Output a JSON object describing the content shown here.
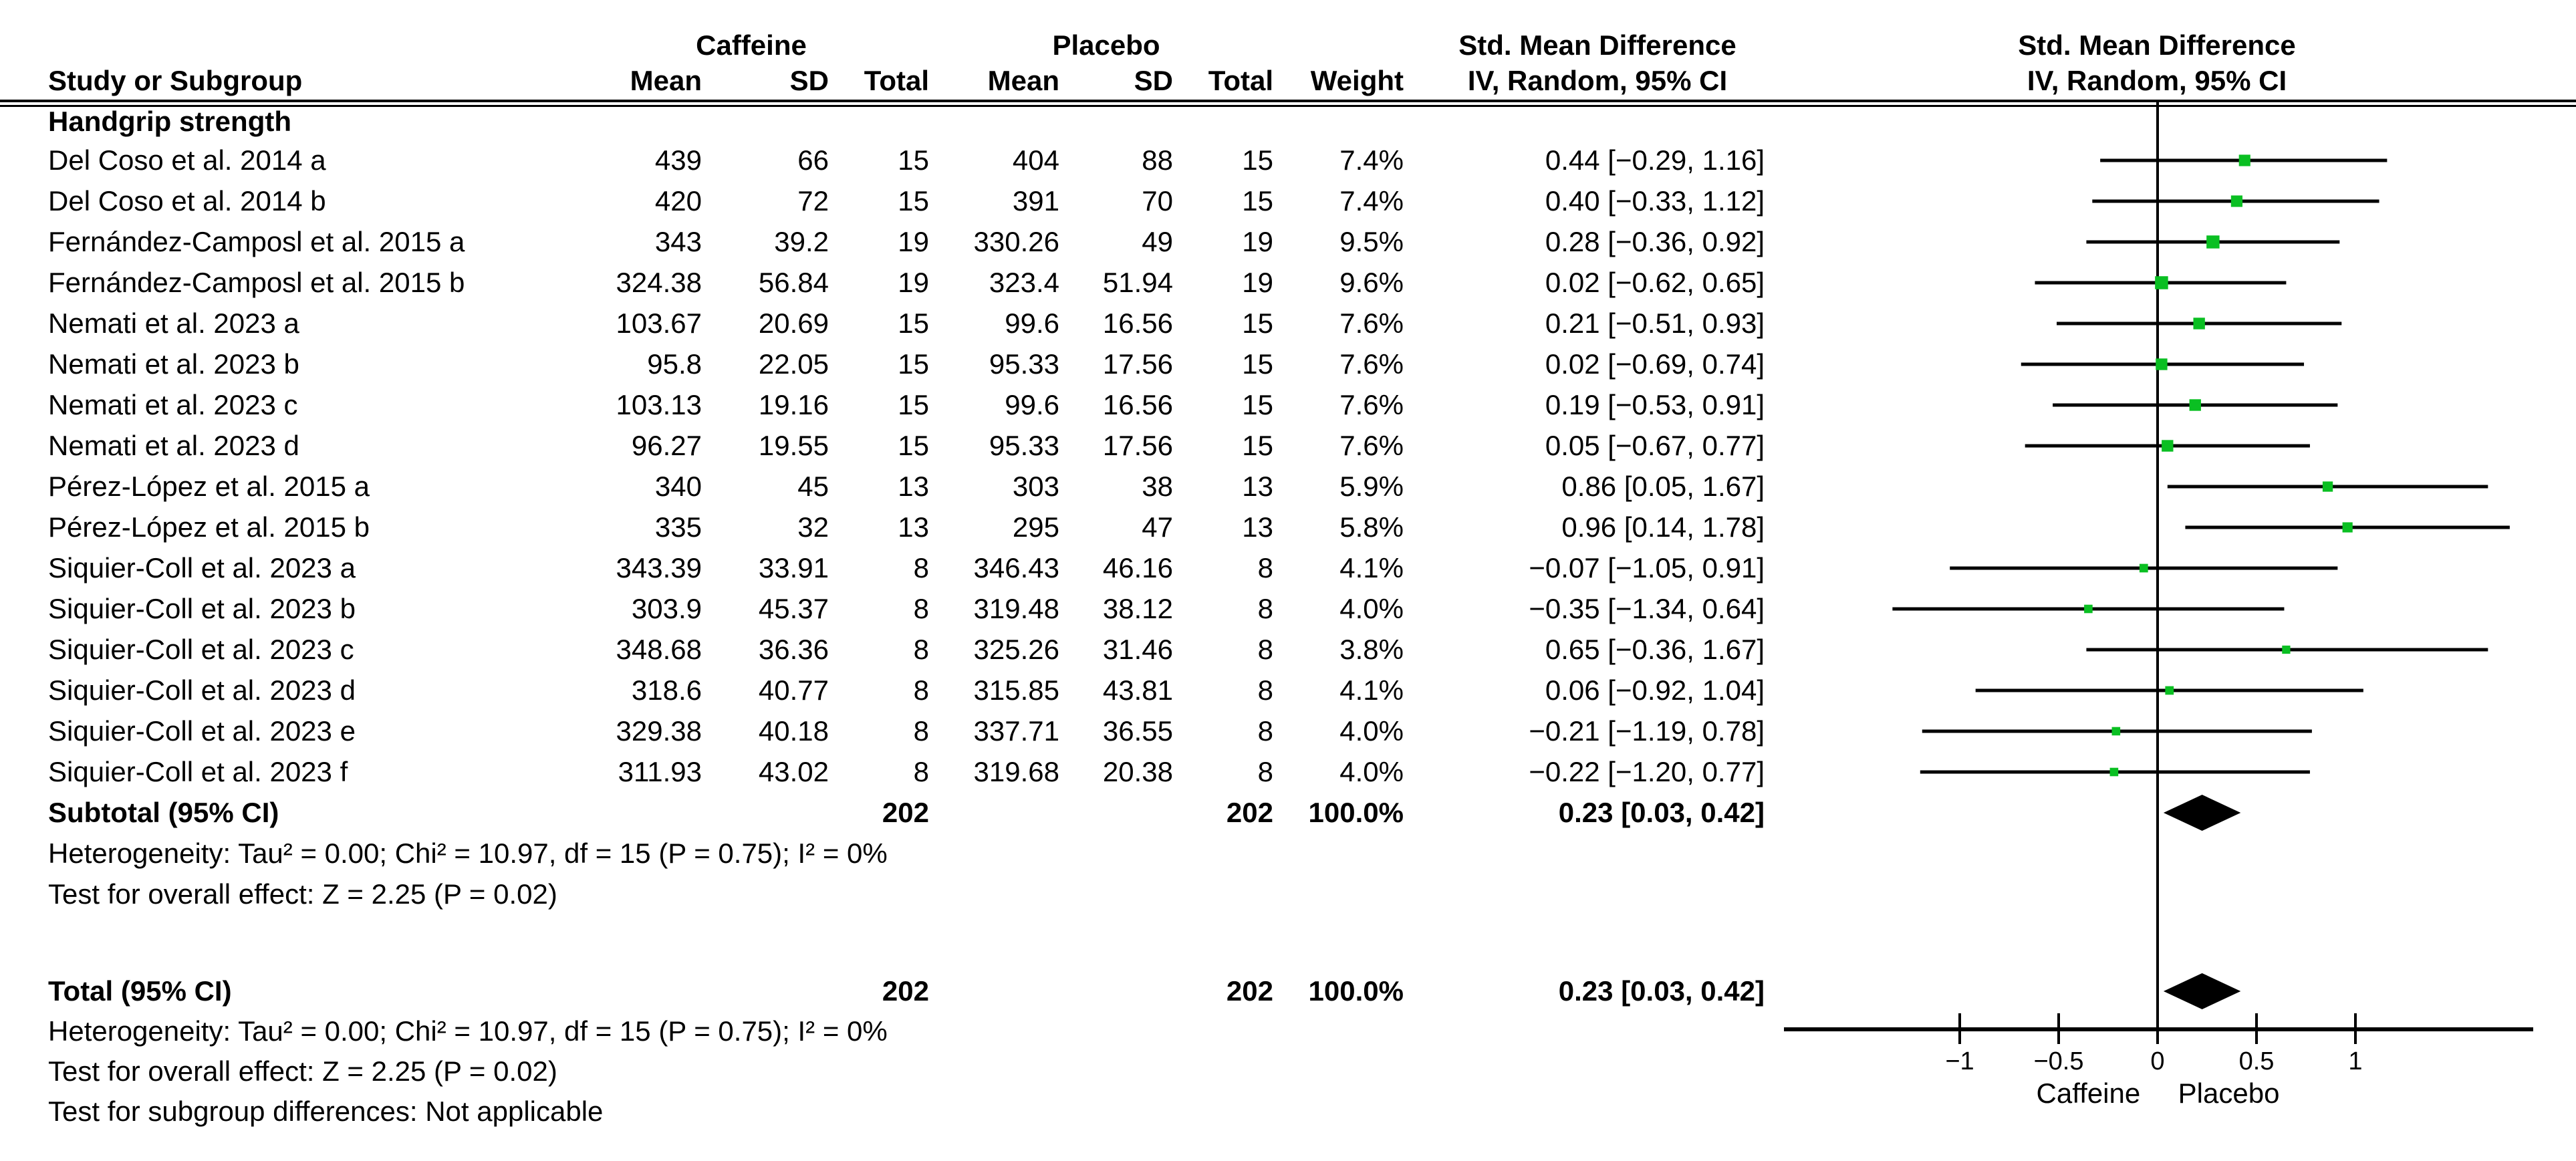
{
  "header": {
    "study_col": "Study or Subgroup",
    "group1": "Caffeine",
    "group2": "Placebo",
    "mean": "Mean",
    "sd": "SD",
    "total": "Total",
    "weight": "Weight",
    "effect_col": "Std. Mean Difference",
    "method_col": "IV, Random, 95% CI"
  },
  "subgroup_label": "Handgrip strength",
  "footer": {
    "subtotal_label": "Subtotal (95% CI)",
    "total_label": "Total (95% CI)",
    "heterogeneity": "Heterogeneity: Tau² = 0.00; Chi² = 10.97, df = 15 (P = 0.75); I² = 0%",
    "overall_effect": "Test for overall effect: Z = 2.25 (P = 0.02)",
    "subgroup_diff": "Test for subgroup differences: Not applicable"
  },
  "colors": {
    "square": "#0abf22",
    "diamond": "#000000",
    "line": "#000000"
  },
  "chart_data": {
    "type": "forest",
    "effect_measure": "Std. Mean Difference",
    "model": "IV, Random, 95% CI",
    "groups": [
      "Caffeine",
      "Placebo"
    ],
    "subgroup": "Handgrip strength",
    "studies": [
      {
        "study": "Del Coso et al. 2014 a",
        "c_mean": "439",
        "c_sd": "66",
        "c_n": "15",
        "p_mean": "404",
        "p_sd": "88",
        "p_n": "15",
        "weight": "7.4%",
        "ci_text": "0.44 [−0.29, 1.16]",
        "smd": 0.44,
        "lo": -0.29,
        "hi": 1.16,
        "weight_val": 7.4
      },
      {
        "study": "Del Coso et al. 2014 b",
        "c_mean": "420",
        "c_sd": "72",
        "c_n": "15",
        "p_mean": "391",
        "p_sd": "70",
        "p_n": "15",
        "weight": "7.4%",
        "ci_text": "0.40 [−0.33, 1.12]",
        "smd": 0.4,
        "lo": -0.33,
        "hi": 1.12,
        "weight_val": 7.4
      },
      {
        "study": "Fernández-Camposl et al. 2015 a",
        "c_mean": "343",
        "c_sd": "39.2",
        "c_n": "19",
        "p_mean": "330.26",
        "p_sd": "49",
        "p_n": "19",
        "weight": "9.5%",
        "ci_text": "0.28 [−0.36, 0.92]",
        "smd": 0.28,
        "lo": -0.36,
        "hi": 0.92,
        "weight_val": 9.5
      },
      {
        "study": "Fernández-Camposl et al. 2015 b",
        "c_mean": "324.38",
        "c_sd": "56.84",
        "c_n": "19",
        "p_mean": "323.4",
        "p_sd": "51.94",
        "p_n": "19",
        "weight": "9.6%",
        "ci_text": "0.02 [−0.62, 0.65]",
        "smd": 0.02,
        "lo": -0.62,
        "hi": 0.65,
        "weight_val": 9.6
      },
      {
        "study": "Nemati et al. 2023 a",
        "c_mean": "103.67",
        "c_sd": "20.69",
        "c_n": "15",
        "p_mean": "99.6",
        "p_sd": "16.56",
        "p_n": "15",
        "weight": "7.6%",
        "ci_text": "0.21 [−0.51, 0.93]",
        "smd": 0.21,
        "lo": -0.51,
        "hi": 0.93,
        "weight_val": 7.6
      },
      {
        "study": "Nemati et al. 2023 b",
        "c_mean": "95.8",
        "c_sd": "22.05",
        "c_n": "15",
        "p_mean": "95.33",
        "p_sd": "17.56",
        "p_n": "15",
        "weight": "7.6%",
        "ci_text": "0.02 [−0.69, 0.74]",
        "smd": 0.02,
        "lo": -0.69,
        "hi": 0.74,
        "weight_val": 7.6
      },
      {
        "study": "Nemati et al. 2023 c",
        "c_mean": "103.13",
        "c_sd": "19.16",
        "c_n": "15",
        "p_mean": "99.6",
        "p_sd": "16.56",
        "p_n": "15",
        "weight": "7.6%",
        "ci_text": "0.19 [−0.53, 0.91]",
        "smd": 0.19,
        "lo": -0.53,
        "hi": 0.91,
        "weight_val": 7.6
      },
      {
        "study": "Nemati et al. 2023 d",
        "c_mean": "96.27",
        "c_sd": "19.55",
        "c_n": "15",
        "p_mean": "95.33",
        "p_sd": "17.56",
        "p_n": "15",
        "weight": "7.6%",
        "ci_text": "0.05 [−0.67, 0.77]",
        "smd": 0.05,
        "lo": -0.67,
        "hi": 0.77,
        "weight_val": 7.6
      },
      {
        "study": "Pérez-López et al. 2015 a",
        "c_mean": "340",
        "c_sd": "45",
        "c_n": "13",
        "p_mean": "303",
        "p_sd": "38",
        "p_n": "13",
        "weight": "5.9%",
        "ci_text": "0.86 [0.05, 1.67]",
        "smd": 0.86,
        "lo": 0.05,
        "hi": 1.67,
        "weight_val": 5.9
      },
      {
        "study": "Pérez-López et al. 2015 b",
        "c_mean": "335",
        "c_sd": "32",
        "c_n": "13",
        "p_mean": "295",
        "p_sd": "47",
        "p_n": "13",
        "weight": "5.8%",
        "ci_text": "0.96 [0.14, 1.78]",
        "smd": 0.96,
        "lo": 0.14,
        "hi": 1.78,
        "weight_val": 5.8
      },
      {
        "study": "Siquier-Coll et al. 2023 a",
        "c_mean": "343.39",
        "c_sd": "33.91",
        "c_n": "8",
        "p_mean": "346.43",
        "p_sd": "46.16",
        "p_n": "8",
        "weight": "4.1%",
        "ci_text": "−0.07 [−1.05, 0.91]",
        "smd": -0.07,
        "lo": -1.05,
        "hi": 0.91,
        "weight_val": 4.1
      },
      {
        "study": "Siquier-Coll et al. 2023 b",
        "c_mean": "303.9",
        "c_sd": "45.37",
        "c_n": "8",
        "p_mean": "319.48",
        "p_sd": "38.12",
        "p_n": "8",
        "weight": "4.0%",
        "ci_text": "−0.35 [−1.34, 0.64]",
        "smd": -0.35,
        "lo": -1.34,
        "hi": 0.64,
        "weight_val": 4.0
      },
      {
        "study": "Siquier-Coll et al. 2023 c",
        "c_mean": "348.68",
        "c_sd": "36.36",
        "c_n": "8",
        "p_mean": "325.26",
        "p_sd": "31.46",
        "p_n": "8",
        "weight": "3.8%",
        "ci_text": "0.65 [−0.36, 1.67]",
        "smd": 0.65,
        "lo": -0.36,
        "hi": 1.67,
        "weight_val": 3.8
      },
      {
        "study": "Siquier-Coll et al. 2023 d",
        "c_mean": "318.6",
        "c_sd": "40.77",
        "c_n": "8",
        "p_mean": "315.85",
        "p_sd": "43.81",
        "p_n": "8",
        "weight": "4.1%",
        "ci_text": "0.06 [−0.92, 1.04]",
        "smd": 0.06,
        "lo": -0.92,
        "hi": 1.04,
        "weight_val": 4.1
      },
      {
        "study": "Siquier-Coll et al. 2023 e",
        "c_mean": "329.38",
        "c_sd": "40.18",
        "c_n": "8",
        "p_mean": "337.71",
        "p_sd": "36.55",
        "p_n": "8",
        "weight": "4.0%",
        "ci_text": "−0.21 [−1.19, 0.78]",
        "smd": -0.21,
        "lo": -1.19,
        "hi": 0.78,
        "weight_val": 4.0
      },
      {
        "study": "Siquier-Coll et al. 2023 f",
        "c_mean": "311.93",
        "c_sd": "43.02",
        "c_n": "8",
        "p_mean": "319.68",
        "p_sd": "20.38",
        "p_n": "8",
        "weight": "4.0%",
        "ci_text": "−0.22 [−1.20, 0.77]",
        "smd": -0.22,
        "lo": -1.2,
        "hi": 0.77,
        "weight_val": 4.0
      }
    ],
    "subtotal": {
      "label": "Subtotal (95% CI)",
      "c_total": "202",
      "p_total": "202",
      "weight": "100.0%",
      "ci_text": "0.23 [0.03, 0.42]",
      "smd": 0.23,
      "lo": 0.03,
      "hi": 0.42
    },
    "total": {
      "label": "Total (95% CI)",
      "c_total": "202",
      "p_total": "202",
      "weight": "100.0%",
      "ci_text": "0.23 [0.03, 0.42]",
      "smd": 0.23,
      "lo": 0.03,
      "hi": 0.42
    },
    "heterogeneity": "Heterogeneity: Tau² = 0.00; Chi² = 10.97, df = 15 (P = 0.75); I² = 0%",
    "overall_effect": "Test for overall effect: Z = 2.25 (P = 0.02)",
    "subgroup_differences": "Test for subgroup differences: Not applicable",
    "axis": {
      "ticks": [
        -1,
        -0.5,
        0,
        0.5,
        1
      ],
      "tick_labels": [
        "−1",
        "−0.5",
        "0",
        "0.5",
        "1"
      ],
      "xmin": -1.89,
      "xmax": 1.9,
      "left_label": "Caffeine",
      "right_label": "Placebo"
    }
  }
}
